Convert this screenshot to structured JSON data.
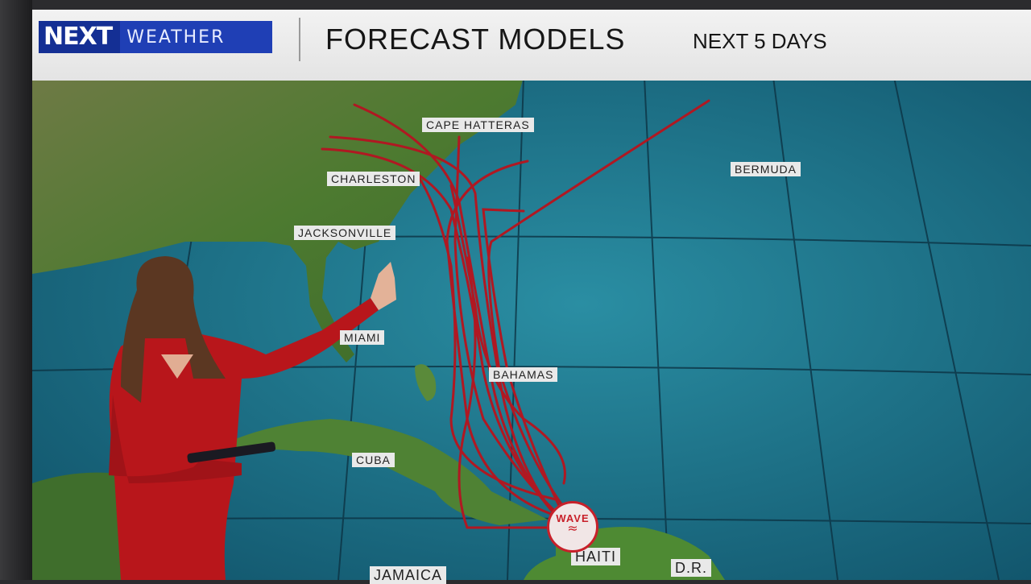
{
  "header": {
    "logo_next": "NEXT",
    "logo_weather": "WEATHER",
    "title": "FORECAST MODELS",
    "subtitle": "NEXT 5 DAYS"
  },
  "map": {
    "labels": {
      "cape_hatteras": "CAPE HATTERAS",
      "charleston": "CHARLESTON",
      "jacksonville": "JACKSONVILLE",
      "bermuda": "BERMUDA",
      "miami": "MIAMI",
      "bahamas": "BAHAMAS",
      "cuba": "CUBA",
      "haiti": "HAITI",
      "dr": "D.R.",
      "jamaica": "JAMAICA"
    },
    "marker": {
      "label": "WAVE",
      "icon": "wave-icon"
    },
    "colors": {
      "ocean": "#1f6f86",
      "land": "#4f7a32",
      "tracks": "#b01822",
      "header_brand": "#1f3fb5"
    }
  }
}
